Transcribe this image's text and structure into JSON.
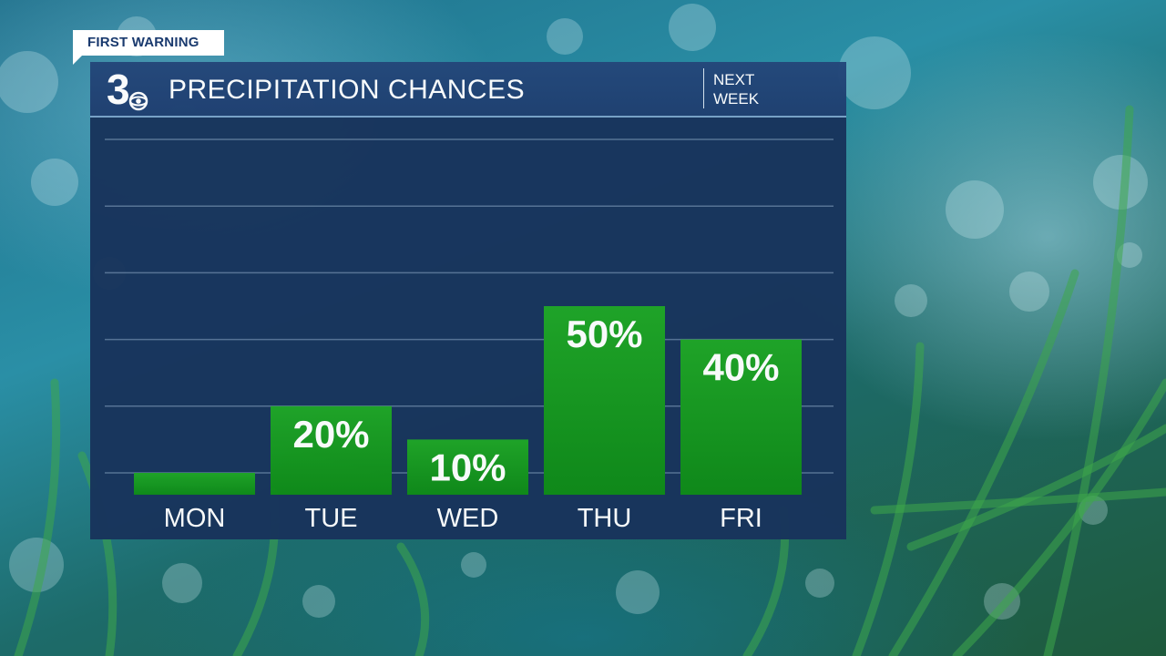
{
  "tag": {
    "label": "FIRST WARNING"
  },
  "header": {
    "logo_number": "3",
    "title": "PRECIPITATION CHANCES",
    "period_line1": "NEXT",
    "period_line2": "WEEK"
  },
  "colors": {
    "panel": "#18345c",
    "header": "#214375",
    "bar_top": "#1fa526",
    "bar_bottom": "#0f8a18",
    "label": "#ffffff"
  },
  "chart_data": {
    "type": "bar",
    "title": "PRECIPITATION CHANCES",
    "categories": [
      "MON",
      "TUE",
      "WED",
      "THU",
      "FRI"
    ],
    "values": [
      0,
      20,
      10,
      50,
      40
    ],
    "data_labels": [
      "",
      "20%",
      "10%",
      "50%",
      "40%"
    ],
    "ylim": [
      0,
      100
    ],
    "grid": true,
    "xlabel": "",
    "ylabel": ""
  }
}
